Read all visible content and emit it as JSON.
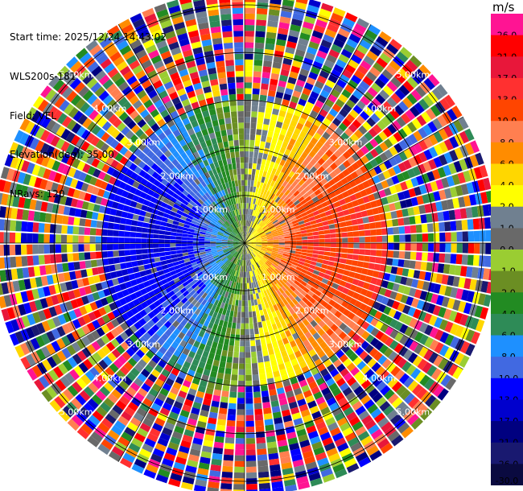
{
  "info": {
    "start_time": "Start time: 2025/12/24 14:43:02",
    "instrument": "WLS200s-181",
    "field": "Field: VEL",
    "elevation": "Elevation(deg): 35.00",
    "nrays": "NRays: 120"
  },
  "colorbar": {
    "unit": "m/s",
    "bands": [
      {
        "label": "26.0",
        "color": "#ff1493"
      },
      {
        "label": "21.0",
        "color": "#ff0000"
      },
      {
        "label": "17.0",
        "color": "#e8173a"
      },
      {
        "label": "13.0",
        "color": "#ff3030"
      },
      {
        "label": "10.0",
        "color": "#ff4500"
      },
      {
        "label": "8.0",
        "color": "#ff7f50"
      },
      {
        "label": "6.0",
        "color": "#ff8c00"
      },
      {
        "label": "4.0",
        "color": "#ffd700"
      },
      {
        "label": "2.0",
        "color": "#ffff00"
      },
      {
        "label": "1.0",
        "color": "#708090"
      },
      {
        "label": "0.0",
        "color": "#696969"
      },
      {
        "label": "-1.0",
        "color": "#9acd32"
      },
      {
        "label": "-2.0",
        "color": "#6b8e23"
      },
      {
        "label": "-4.0",
        "color": "#228b22"
      },
      {
        "label": "-6.0",
        "color": "#2e8b57"
      },
      {
        "label": "-8.0",
        "color": "#1e90ff"
      },
      {
        "label": "-10.0",
        "color": "#4169e1"
      },
      {
        "label": "-13.0",
        "color": "#0000ff"
      },
      {
        "label": "-17.0",
        "color": "#0000cd"
      },
      {
        "label": "-21.0",
        "color": "#000080"
      },
      {
        "label": "-26.0",
        "color": "#191970"
      }
    ],
    "bottom_label": "-30.0"
  },
  "chart_data": {
    "type": "heatmap",
    "projection": "polar PPI scan",
    "field": "VEL",
    "nrays": 120,
    "elevation_deg": 35.0,
    "range_rings_km": [
      1.0,
      2.0,
      3.0,
      4.0,
      5.0
    ],
    "ring_labels": [
      "1.00km",
      "2.00km",
      "3.00km",
      "4.00km",
      "5.00km"
    ],
    "max_range_km": 5.3,
    "pattern": "coherent dipole: positive (yellow-red) to the east, negative (green-blue) to the west within ~3 km; noisy random velocities beyond ~3 km"
  }
}
